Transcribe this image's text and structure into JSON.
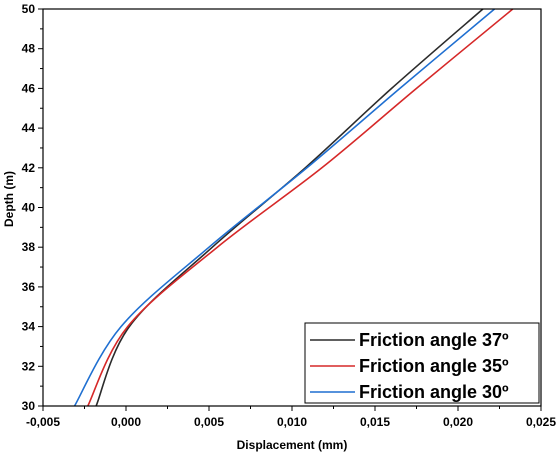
{
  "chart_data": {
    "type": "line",
    "xlabel": "Displacement (mm)",
    "ylabel": "Depth (m)",
    "xlim": [
      -0.005,
      0.025
    ],
    "ylim": [
      30,
      50
    ],
    "x_ticks": [
      "-0,005",
      "0,000",
      "0,005",
      "0,010",
      "0,015",
      "0,020",
      "0,025"
    ],
    "y_ticks": [
      "30",
      "32",
      "34",
      "36",
      "38",
      "40",
      "42",
      "44",
      "46",
      "48",
      "50"
    ],
    "grid": false,
    "legend_position": "bottom-right",
    "series": [
      {
        "name": "Friction angle 37º",
        "color": "#2b2b2b",
        "points": [
          [
            -0.0018,
            30
          ],
          [
            0.0002,
            34
          ],
          [
            0.0052,
            38
          ],
          [
            0.0108,
            42
          ],
          [
            0.016,
            46
          ],
          [
            0.0215,
            50
          ]
        ]
      },
      {
        "name": "Friction angle 35º",
        "color": "#d62828",
        "points": [
          [
            -0.0023,
            30
          ],
          [
            0.0001,
            34
          ],
          [
            0.0055,
            38
          ],
          [
            0.0118,
            42
          ],
          [
            0.0175,
            46
          ],
          [
            0.0233,
            50
          ]
        ]
      },
      {
        "name": "Friction angle 30º",
        "color": "#1f6fd1",
        "points": [
          [
            -0.0031,
            30
          ],
          [
            -0.0003,
            34
          ],
          [
            0.005,
            38
          ],
          [
            0.0109,
            42
          ],
          [
            0.0165,
            46
          ],
          [
            0.0222,
            50
          ]
        ]
      }
    ]
  }
}
